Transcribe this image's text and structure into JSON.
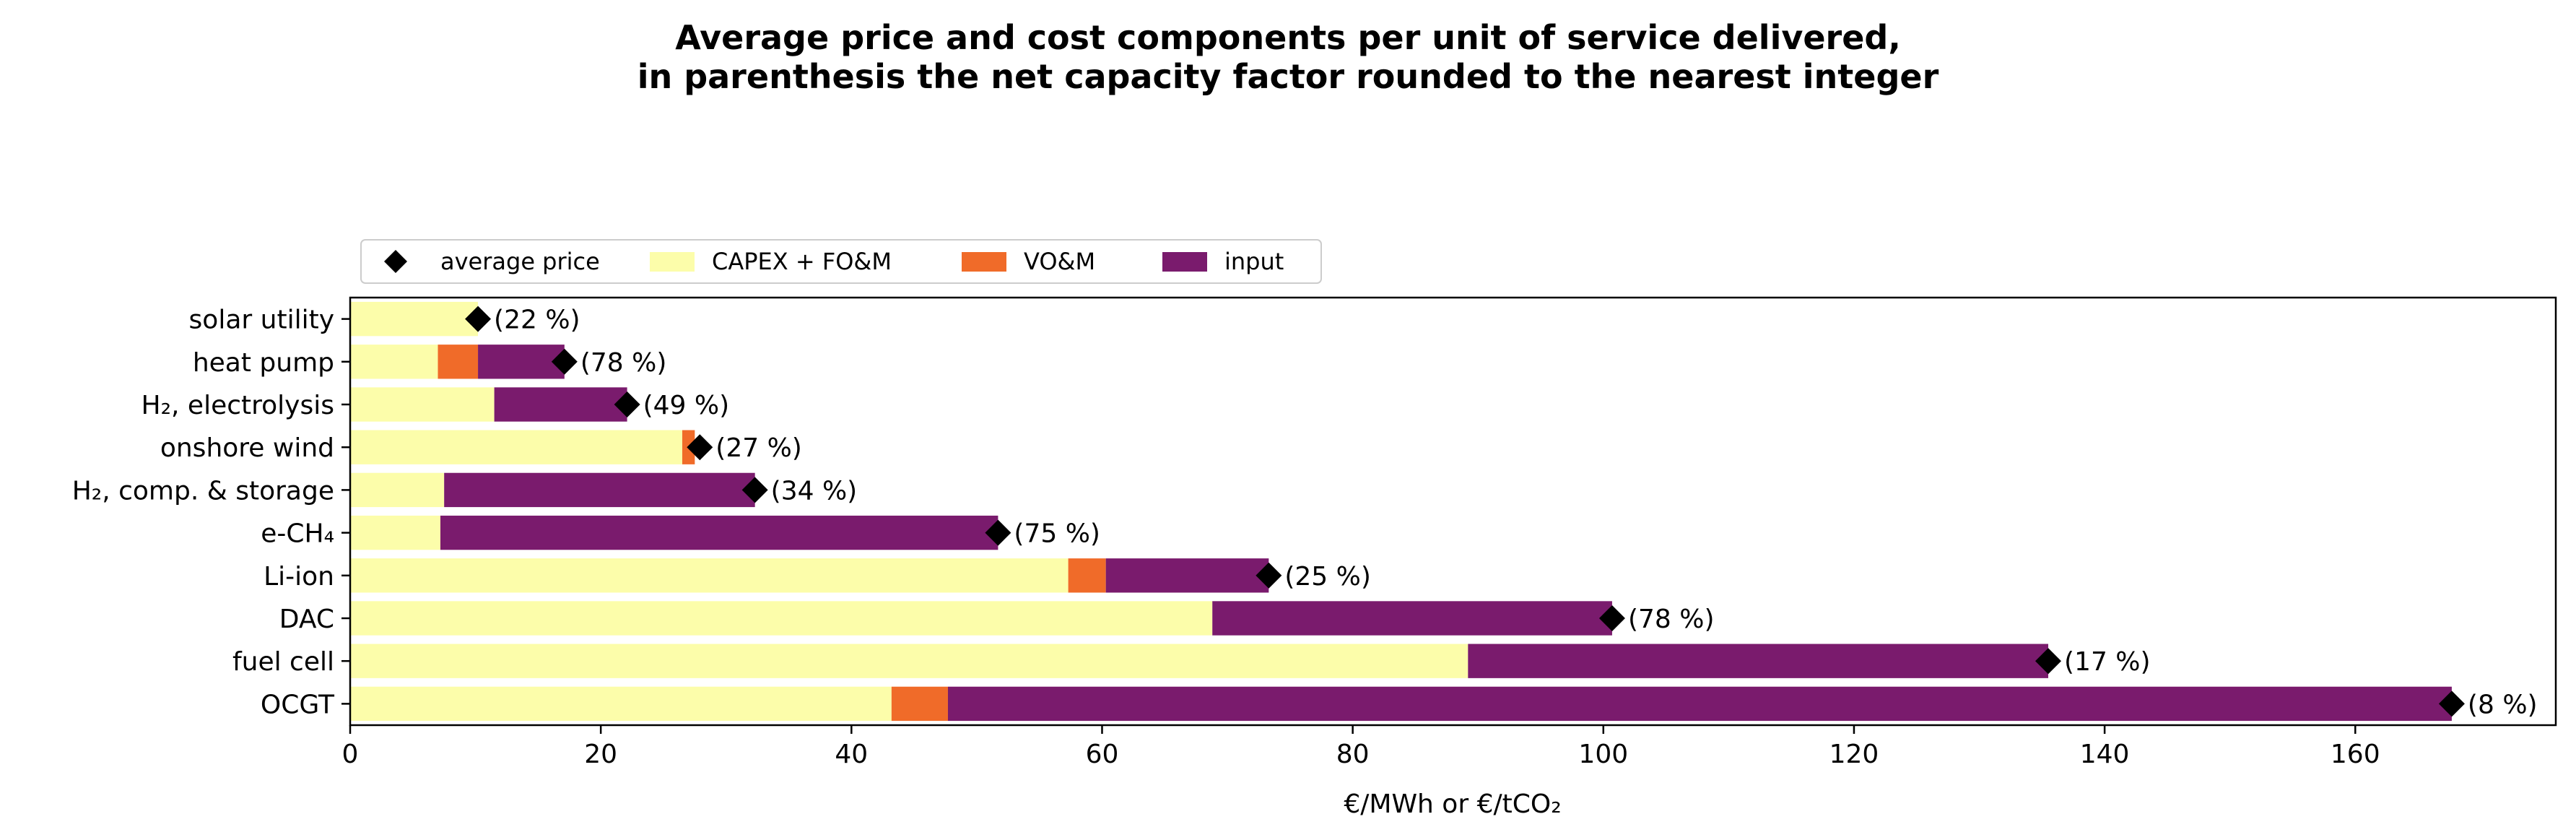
{
  "chart_data": {
    "type": "bar",
    "orientation": "horizontal",
    "stacked": true,
    "title": "Average price and cost components per unit of service delivered,",
    "subtitle": "in parenthesis the net capacity factor rounded to the nearest integer",
    "xlabel": "€/MWh or €/tCO₂",
    "ylabel": "",
    "xlim": [
      0,
      176
    ],
    "xticks": [
      "0",
      "20",
      "40",
      "60",
      "80",
      "100",
      "120",
      "140",
      "160"
    ],
    "categories": [
      "solar utility",
      "heat pump",
      "H₂, electrolysis",
      "onshore wind",
      "H₂, comp. & storage",
      "e-CH₄",
      "Li-ion",
      "DAC",
      "fuel cell",
      "OCGT"
    ],
    "series": [
      {
        "name": "CAPEX + FO&M",
        "color": "#fcfdaa",
        "values": [
          10.2,
          7.0,
          11.5,
          26.5,
          7.5,
          7.2,
          57.3,
          68.8,
          89.2,
          43.2
        ]
      },
      {
        "name": "VO&M",
        "color": "#f06b29",
        "values": [
          0,
          3.2,
          0,
          1.0,
          0,
          0,
          3.0,
          0,
          0,
          4.5
        ]
      },
      {
        "name": "input",
        "color": "#7a1b6d",
        "values": [
          0,
          6.9,
          10.6,
          0,
          24.8,
          44.5,
          13.0,
          31.9,
          46.3,
          120.0
        ]
      }
    ],
    "average_price": {
      "name": "average price",
      "marker": "diamond",
      "color": "#000000",
      "values": [
        10.2,
        17.1,
        22.1,
        27.9,
        32.3,
        51.7,
        73.3,
        100.7,
        135.5,
        167.7
      ]
    },
    "annotations": [
      "(22 %)",
      "(78 %)",
      "(49 %)",
      "(27 %)",
      "(34 %)",
      "(75 %)",
      "(25 %)",
      "(78 %)",
      "(17 %)",
      "(8 %)"
    ],
    "legend": {
      "placement": "top-left, above plot",
      "entries": [
        "average price",
        "CAPEX + FO&M",
        "VO&M",
        "input"
      ]
    },
    "grid": false
  }
}
